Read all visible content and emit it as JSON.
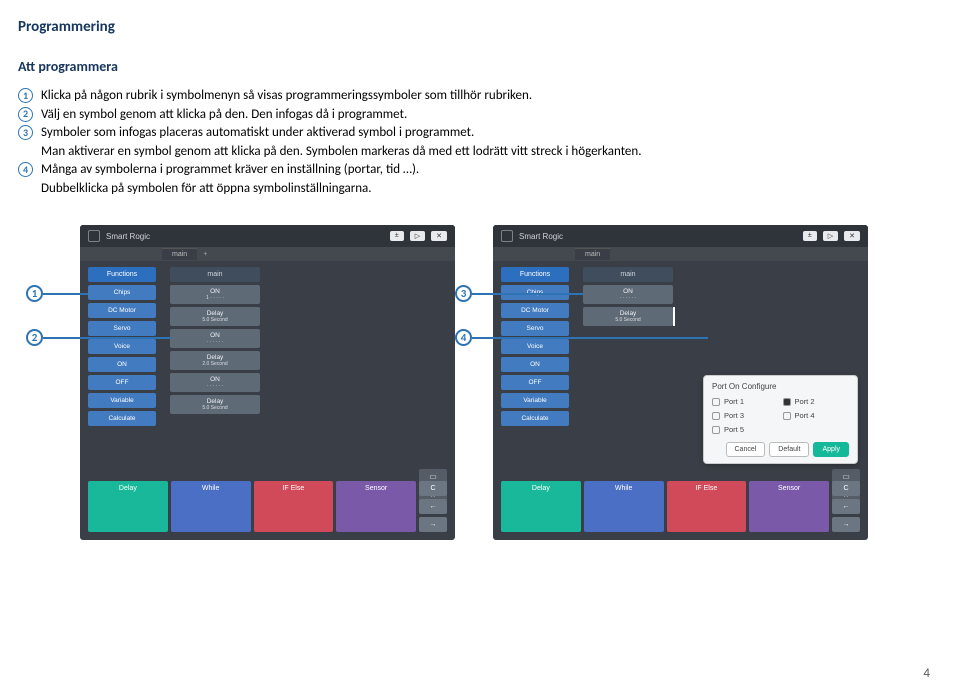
{
  "page": {
    "title": "Programmering",
    "subtitle": "Att programmera",
    "page_number": "4"
  },
  "instructions": {
    "n1": "1",
    "t1": "Klicka på någon rubrik i symbolmenyn så visas programmeringssymboler som tillhör rubriken.",
    "n2": "2",
    "t2": "Välj en symbol genom att klicka på den. Den infogas då i programmet.",
    "n3": "3",
    "t3": "Symboler som infogas placeras automatiskt under aktiverad symbol i programmet.",
    "t3b": "Man aktiverar en symbol genom att klicka på den. Symbolen markeras då med ett lodrätt vitt streck i högerkanten.",
    "n4": "4",
    "t4": "Många av symbolerna i programmet kräver en inställning (portar, tid …).",
    "t4b": "Dubbelklicka på symbolen för att öppna symbolinställningarna."
  },
  "app": {
    "brand": "Smart Rogic",
    "topbtn1": "±",
    "topbtn2": "▷",
    "topbtn3": "✕",
    "tab_main": "main",
    "tab_plus": "+",
    "fn_head": "Functions",
    "fn": [
      "Chips",
      "DC Motor",
      "Servo",
      "Voice",
      "ON",
      "OFF",
      "Variable",
      "Calculate"
    ],
    "canvas_head": "main",
    "blocks_left": [
      {
        "m": "ON",
        "s": "1 · · · · ·"
      },
      {
        "m": "Delay",
        "s": "5.0 Second"
      },
      {
        "m": "ON",
        "s": "· · · · · ·"
      },
      {
        "m": "Delay",
        "s": "2.0 Second"
      },
      {
        "m": "ON",
        "s": "· · · · · ·"
      },
      {
        "m": "Delay",
        "s": "5.0 Second"
      }
    ],
    "blocks_right": [
      {
        "m": "ON",
        "s": "· · · · · ·"
      },
      {
        "m": "Delay",
        "s": "5.0 Second",
        "sel": true
      }
    ],
    "bottom": {
      "delay": "Delay",
      "while": "While",
      "ifelse": "IF Else",
      "sensor": "Sensor",
      "c": "C",
      "left": "←",
      "right": "→"
    },
    "right_icons": [
      "▭",
      "★"
    ]
  },
  "dialog": {
    "title": "Port On Configure",
    "ports": [
      "Port 1",
      "Port 2",
      "Port 3",
      "Port 4",
      "Port 5"
    ],
    "checked": 1,
    "cancel": "Cancel",
    "default": "Default",
    "apply": "Apply"
  },
  "callouts": {
    "c1": "1",
    "c2": "2",
    "c3": "3",
    "c4": "4"
  },
  "colors": {
    "accent": "#2e74b5",
    "bottom_colors": {
      "delay": "#19b89a",
      "while": "#4a6fc5",
      "ifelse": "#d14a5a",
      "sensor": "#7a5aa8"
    }
  }
}
